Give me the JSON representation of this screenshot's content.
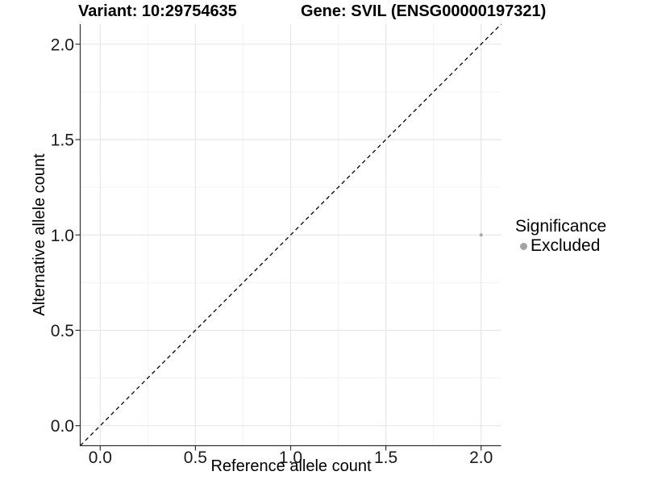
{
  "chart_data": {
    "type": "scatter",
    "title_left": "Variant: 10:29754635",
    "title_right": "Gene: SVIL (ENSG00000197321)",
    "xlabel": "Reference allele count",
    "ylabel": "Alternative allele count",
    "xlim": [
      -0.105,
      2.105
    ],
    "ylim": [
      -0.105,
      2.105
    ],
    "x_ticks": [
      0.0,
      0.5,
      1.0,
      1.5,
      2.0
    ],
    "y_ticks": [
      0.0,
      0.5,
      1.0,
      1.5,
      2.0
    ],
    "x_minor_ticks": [
      0.25,
      0.75,
      1.25,
      1.75
    ],
    "y_minor_ticks": [
      0.25,
      0.75,
      1.25,
      1.75
    ],
    "tick_label_format": "one-decimal",
    "grid": true,
    "reference_line": {
      "type": "identity y=x",
      "style": "dashed",
      "color": "#000000"
    },
    "series": [
      {
        "name": "Excluded",
        "color": "#a8a8a8"
      }
    ],
    "points": [
      {
        "x": 2.0,
        "y": 1.0,
        "series": "Excluded"
      }
    ],
    "legend": {
      "position": "right",
      "title": "Significance",
      "items": [
        {
          "label": "Excluded",
          "color": "#a3a3a3"
        }
      ]
    },
    "colors": {
      "background": "#ffffff",
      "grid_major": "#e7e7e7",
      "grid_minor": "#f3f3f3",
      "axis_line": "#333333",
      "tick_mark": "#333333",
      "tick_text": "#1a1a1a",
      "title_text": "#000000"
    }
  }
}
